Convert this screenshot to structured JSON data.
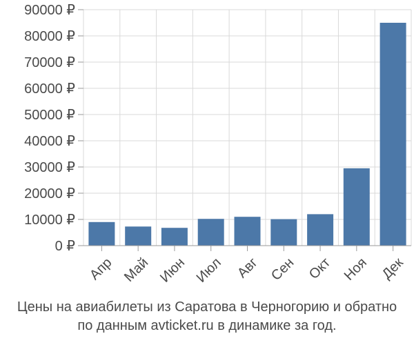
{
  "chart_data": {
    "type": "bar",
    "categories": [
      "Апр",
      "Май",
      "Июн",
      "Июл",
      "Авг",
      "Сен",
      "Окт",
      "Ноя",
      "Дек"
    ],
    "values": [
      9000,
      7300,
      6800,
      10200,
      11000,
      10100,
      12000,
      29500,
      85000
    ],
    "ylim": [
      0,
      90000
    ],
    "yticks": [
      0,
      10000,
      20000,
      30000,
      40000,
      50000,
      60000,
      70000,
      80000,
      90000
    ],
    "ytick_labels": [
      "0 ₽",
      "10000 ₽",
      "20000 ₽",
      "30000 ₽",
      "40000 ₽",
      "50000 ₽",
      "60000 ₽",
      "70000 ₽",
      "80000 ₽",
      "90000 ₽"
    ],
    "grid": true,
    "bar_color": "#4c78a8",
    "title": "",
    "xlabel": "",
    "ylabel": ""
  },
  "caption": {
    "line1": "Цены на авиабилеты из Саратова в Черногорию и обратно",
    "line2": "по данным avticket.ru в динамике за год."
  }
}
